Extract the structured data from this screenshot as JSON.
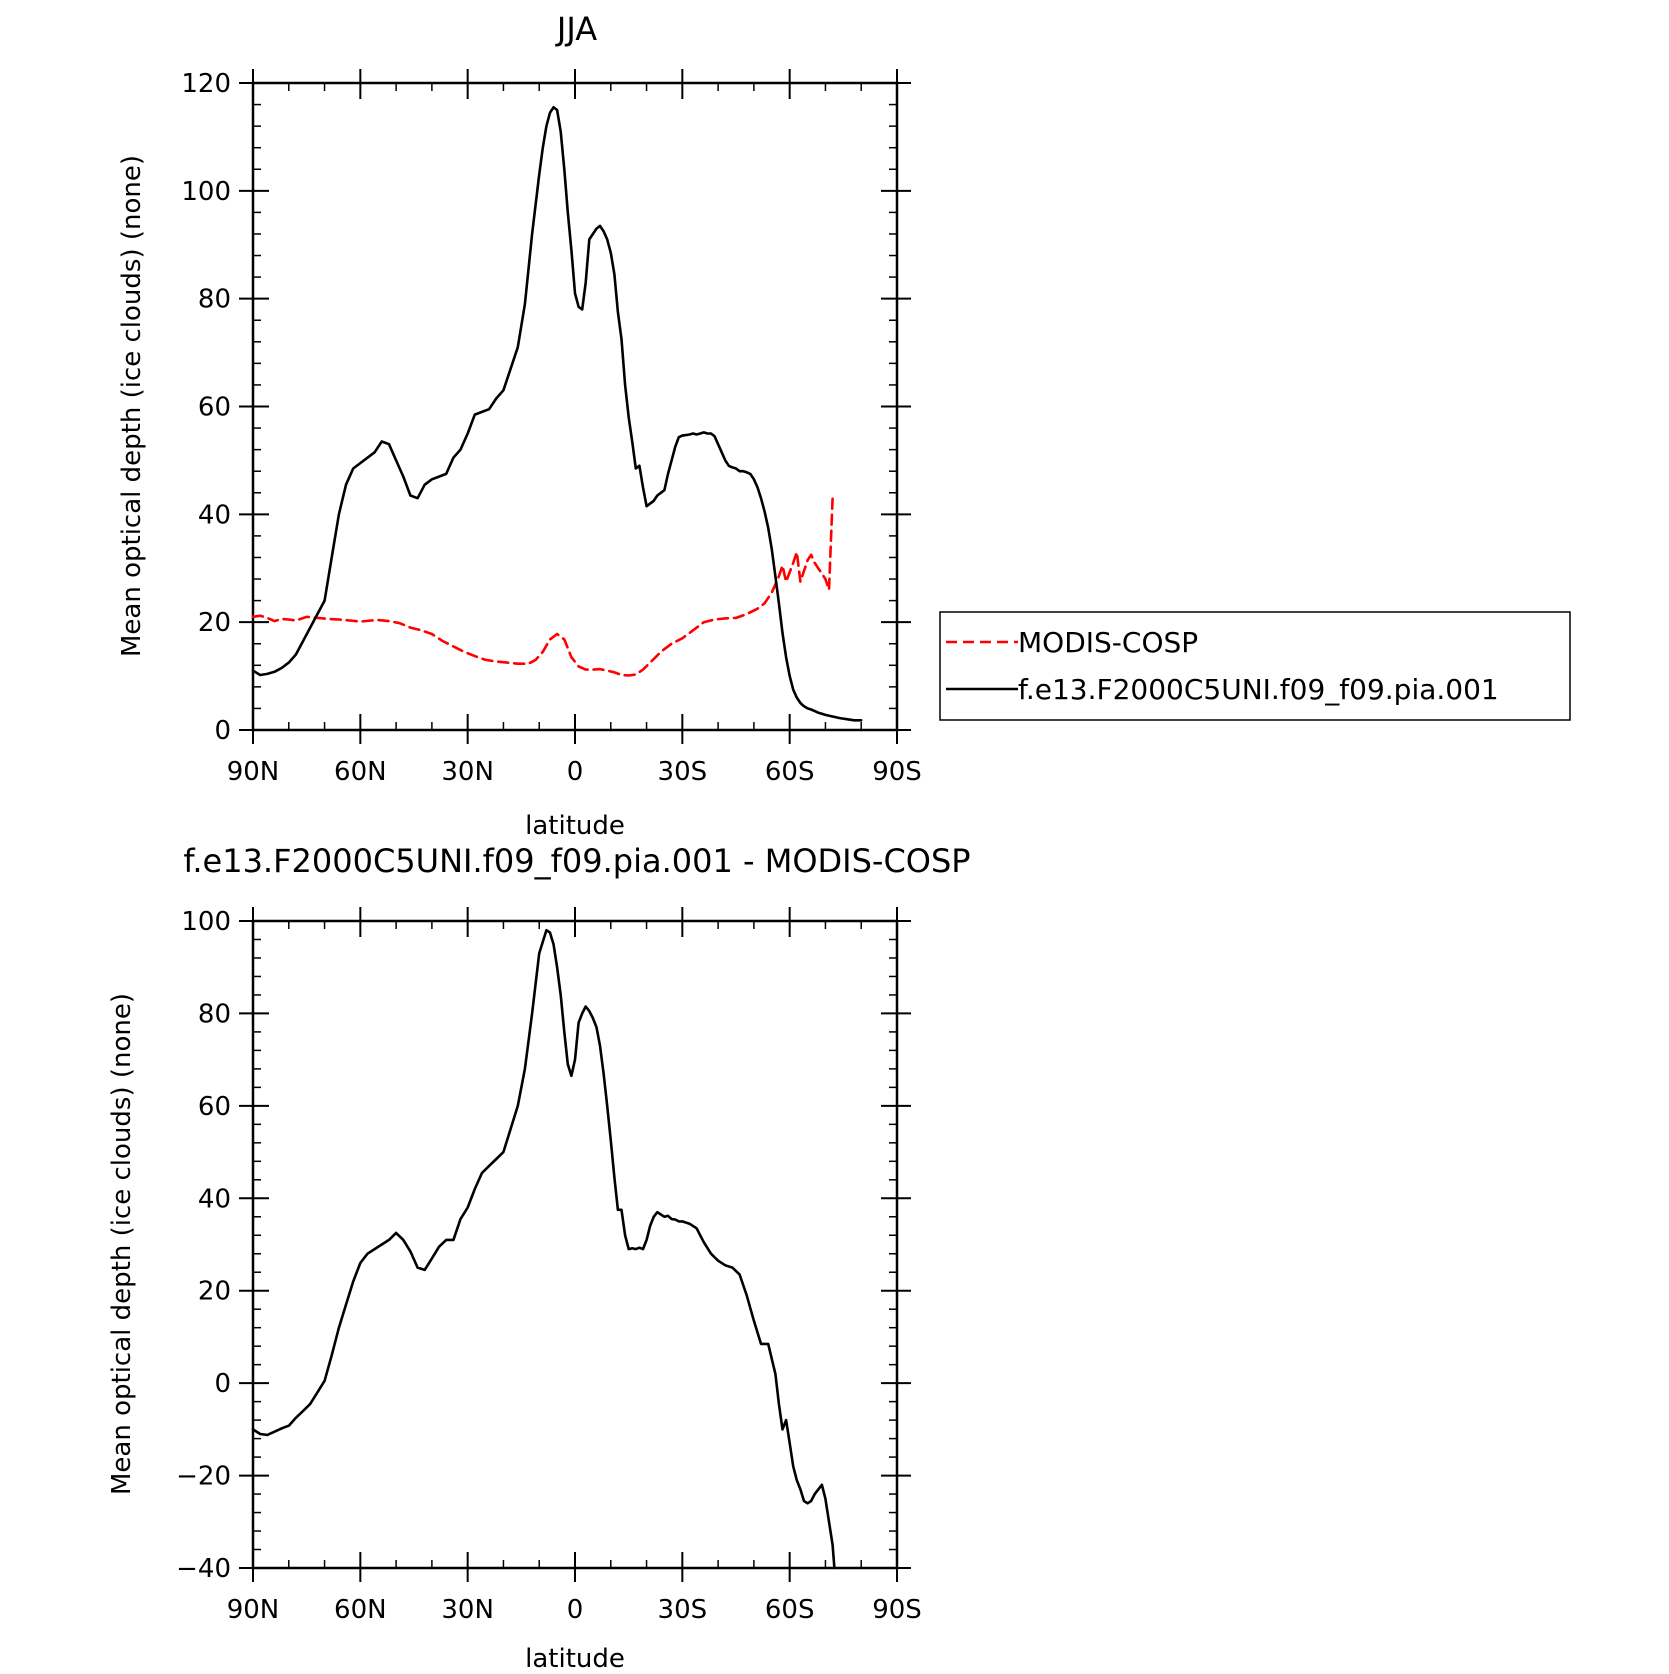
{
  "chart_data": [
    {
      "type": "line",
      "title": "JJA",
      "xlabel": "latitude",
      "ylabel": "Mean optical depth (ice clouds) (none)",
      "xlim": [
        90,
        -90
      ],
      "ylim": [
        0,
        120
      ],
      "x_ticks": [
        {
          "value": 90,
          "label": "90N"
        },
        {
          "value": 60,
          "label": "60N"
        },
        {
          "value": 30,
          "label": "30N"
        },
        {
          "value": 0,
          "label": "0"
        },
        {
          "value": -30,
          "label": "30S"
        },
        {
          "value": -60,
          "label": "60S"
        },
        {
          "value": -90,
          "label": "90S"
        }
      ],
      "y_ticks": [
        {
          "value": 0,
          "label": "0"
        },
        {
          "value": 20,
          "label": "20"
        },
        {
          "value": 40,
          "label": "40"
        },
        {
          "value": 60,
          "label": "60"
        },
        {
          "value": 80,
          "label": "80"
        },
        {
          "value": 100,
          "label": "100"
        },
        {
          "value": 120,
          "label": "120"
        }
      ],
      "legend": [
        {
          "label": "MODIS-COSP",
          "color": "#ff0000",
          "style": "dashed"
        },
        {
          "label": "f.e13.F2000C5UNI.f09_f09.pia.001",
          "color": "#000000",
          "style": "solid"
        }
      ],
      "series": [
        {
          "name": "MODIS-COSP",
          "color": "#ff0000",
          "style": "dashed",
          "x": [
            90,
            88,
            86,
            84,
            82,
            80,
            78,
            75,
            72,
            69,
            66,
            63,
            60,
            57,
            55,
            52,
            49,
            46,
            43,
            40,
            37,
            34,
            31,
            28,
            25,
            22,
            19,
            16,
            13,
            11,
            9,
            7,
            5,
            3,
            1,
            -1,
            -3,
            -5,
            -7,
            -9,
            -11,
            -13,
            -15,
            -17,
            -19,
            -21,
            -24,
            -27,
            -30,
            -33,
            -36,
            -39,
            -42,
            -45,
            -48,
            -51,
            -53,
            -55,
            -57,
            -58,
            -59,
            -61,
            -62,
            -63,
            -64,
            -65,
            -66,
            -67,
            -68,
            -69,
            -70,
            -71,
            -72
          ],
          "values": [
            21,
            21.2,
            20.8,
            20.2,
            20.6,
            20.5,
            20.3,
            21,
            20.8,
            20.6,
            20.5,
            20.3,
            20.1,
            20.3,
            20.4,
            20.2,
            19.8,
            19,
            18.5,
            17.8,
            16.5,
            15.5,
            14.5,
            13.7,
            13,
            12.7,
            12.5,
            12.3,
            12.3,
            13,
            14.5,
            16.8,
            17.8,
            16.8,
            13.5,
            11.8,
            11.2,
            11.2,
            11.3,
            11,
            10.7,
            10.2,
            10.1,
            10.3,
            11.2,
            12.5,
            14.5,
            16,
            17,
            18.5,
            20,
            20.5,
            20.7,
            20.8,
            21.5,
            22.5,
            23.5,
            25.5,
            28.5,
            30.5,
            27.5,
            31,
            33,
            27.5,
            29.5,
            31.5,
            32.5,
            31,
            30,
            29,
            28,
            26,
            43
          ]
        },
        {
          "name": "f.e13.F2000C5UNI.f09_f09.pia.001",
          "color": "#000000",
          "style": "solid",
          "x": [
            90,
            88,
            86,
            84,
            82,
            80,
            78,
            76,
            74,
            72,
            70,
            68,
            66,
            64,
            62,
            60,
            58,
            56,
            54,
            52,
            50,
            48,
            46,
            44,
            42,
            40,
            38,
            36,
            34,
            32,
            30,
            28,
            26,
            24,
            22,
            20,
            18,
            16,
            14,
            12,
            10,
            9,
            8,
            7,
            6,
            5,
            4,
            3,
            2,
            1,
            0,
            -1,
            -2,
            -3,
            -4,
            -5,
            -6,
            -7,
            -8,
            -9,
            -10,
            -11,
            -12,
            -13,
            -14,
            -15,
            -16,
            -17,
            -18,
            -19,
            -20,
            -21,
            -22,
            -23,
            -24,
            -25,
            -26,
            -27,
            -28,
            -29,
            -30,
            -31,
            -32,
            -33,
            -34,
            -35,
            -36,
            -37,
            -38,
            -39,
            -40,
            -41,
            -42,
            -43,
            -44,
            -45,
            -46,
            -47,
            -48,
            -49,
            -50,
            -51,
            -52,
            -53,
            -54,
            -55,
            -56,
            -57,
            -58,
            -59,
            -60,
            -61,
            -62,
            -63,
            -64,
            -65,
            -66,
            -67,
            -68,
            -69,
            -70,
            -72,
            -74,
            -76,
            -78,
            -80
          ],
          "values": [
            11,
            10.2,
            10.4,
            10.8,
            11.5,
            12.5,
            14,
            16.5,
            19,
            21.5,
            24,
            32,
            40,
            45.5,
            48.5,
            49.5,
            50.5,
            51.5,
            53.5,
            53,
            50,
            47,
            43.5,
            43,
            45.5,
            46.5,
            47,
            47.5,
            50.5,
            52,
            55,
            58.5,
            59,
            59.5,
            61.5,
            63,
            67,
            71,
            79,
            92,
            103,
            108,
            112,
            114.5,
            115.5,
            115,
            111,
            104,
            96,
            89,
            81,
            78.5,
            78,
            83,
            91,
            92,
            93,
            93.5,
            92.5,
            91,
            88.5,
            84.5,
            77.5,
            72.5,
            64,
            58,
            53.5,
            48.5,
            49,
            45,
            41.5,
            42,
            42.5,
            43.5,
            44,
            44.5,
            47.5,
            50,
            52.5,
            54.3,
            54.6,
            54.7,
            54.8,
            55,
            54.8,
            55,
            55.2,
            55,
            55,
            54.5,
            53,
            51.5,
            50,
            49,
            48.7,
            48.5,
            48,
            48,
            47.8,
            47.5,
            46.5,
            45,
            43,
            40.5,
            37.5,
            33.5,
            28.5,
            23.5,
            18,
            13.5,
            10,
            7.5,
            6,
            5,
            4.4,
            4,
            3.8,
            3.5,
            3.2,
            3,
            2.8,
            2.5,
            2.2,
            2,
            1.8,
            1.8
          ]
        }
      ]
    },
    {
      "type": "line",
      "title": "f.e13.F2000C5UNI.f09_f09.pia.001 - MODIS-COSP",
      "xlabel": "latitude",
      "ylabel": "Mean optical depth (ice clouds) (none)",
      "xlim": [
        90,
        -90
      ],
      "ylim": [
        -40,
        100
      ],
      "x_ticks": [
        {
          "value": 90,
          "label": "90N"
        },
        {
          "value": 60,
          "label": "60N"
        },
        {
          "value": 30,
          "label": "30N"
        },
        {
          "value": 0,
          "label": "0"
        },
        {
          "value": -30,
          "label": "30S"
        },
        {
          "value": -60,
          "label": "60S"
        },
        {
          "value": -90,
          "label": "90S"
        }
      ],
      "y_ticks": [
        {
          "value": -40,
          "label": "−40"
        },
        {
          "value": -20,
          "label": "−20"
        },
        {
          "value": 0,
          "label": "0"
        },
        {
          "value": 20,
          "label": "20"
        },
        {
          "value": 40,
          "label": "40"
        },
        {
          "value": 60,
          "label": "60"
        },
        {
          "value": 80,
          "label": "80"
        },
        {
          "value": 100,
          "label": "100"
        }
      ],
      "series": [
        {
          "name": "f.e13.F2000C5UNI.f09_f09.pia.001 - MODIS-COSP",
          "color": "#000000",
          "style": "solid",
          "x": [
            90,
            88,
            86,
            84,
            82,
            80,
            78,
            76,
            74,
            72,
            70,
            68,
            66,
            64,
            62,
            60,
            58,
            56,
            54,
            52,
            50,
            48,
            46,
            44,
            42,
            40,
            38,
            36,
            34,
            32,
            30,
            28,
            26,
            24,
            22,
            20,
            18,
            16,
            14,
            12,
            10,
            8,
            7,
            6,
            5,
            4,
            3,
            2,
            1,
            0,
            -1,
            -2,
            -3,
            -4,
            -5,
            -6,
            -7,
            -8,
            -9,
            -10,
            -11,
            -12,
            -13,
            -14,
            -15,
            -16,
            -17,
            -18,
            -19,
            -20,
            -21,
            -22,
            -23,
            -24,
            -25,
            -26,
            -27,
            -28,
            -29,
            -30,
            -32,
            -34,
            -36,
            -38,
            -40,
            -42,
            -44,
            -46,
            -48,
            -50,
            -52,
            -54,
            -56,
            -57,
            -58,
            -59,
            -60,
            -61,
            -62,
            -63,
            -64,
            -65,
            -66,
            -67,
            -68,
            -69,
            -70,
            -71,
            -72,
            -72.5
          ],
          "values": [
            -10,
            -11,
            -11.2,
            -10.5,
            -9.8,
            -9.2,
            -7.5,
            -6,
            -4.5,
            -2,
            0.5,
            6,
            12,
            17,
            22,
            26,
            28,
            29,
            30,
            31,
            32.5,
            31,
            28.5,
            25,
            24.5,
            27,
            29.5,
            31,
            31,
            35.5,
            38,
            42,
            45.5,
            47,
            48.5,
            50,
            55,
            60,
            68,
            80,
            93,
            98,
            97.5,
            95,
            90,
            84,
            76,
            69,
            66.5,
            70,
            78,
            80,
            81.5,
            80.5,
            79,
            77,
            73,
            67,
            60,
            52.5,
            44.5,
            37.5,
            37.5,
            32,
            29,
            29.2,
            29,
            29.3,
            29,
            31,
            34,
            36,
            37,
            36.5,
            36,
            36.2,
            35.5,
            35.4,
            35,
            35,
            34.5,
            33.5,
            30.5,
            28,
            26.5,
            25.5,
            25,
            23.5,
            19,
            13.5,
            8.5,
            8.5,
            2,
            -4.5,
            -10,
            -8,
            -13,
            -18,
            -21,
            -23,
            -25.5,
            -26,
            -25.5,
            -24,
            -23,
            -22,
            -25,
            -30,
            -35,
            -40
          ]
        }
      ]
    }
  ]
}
